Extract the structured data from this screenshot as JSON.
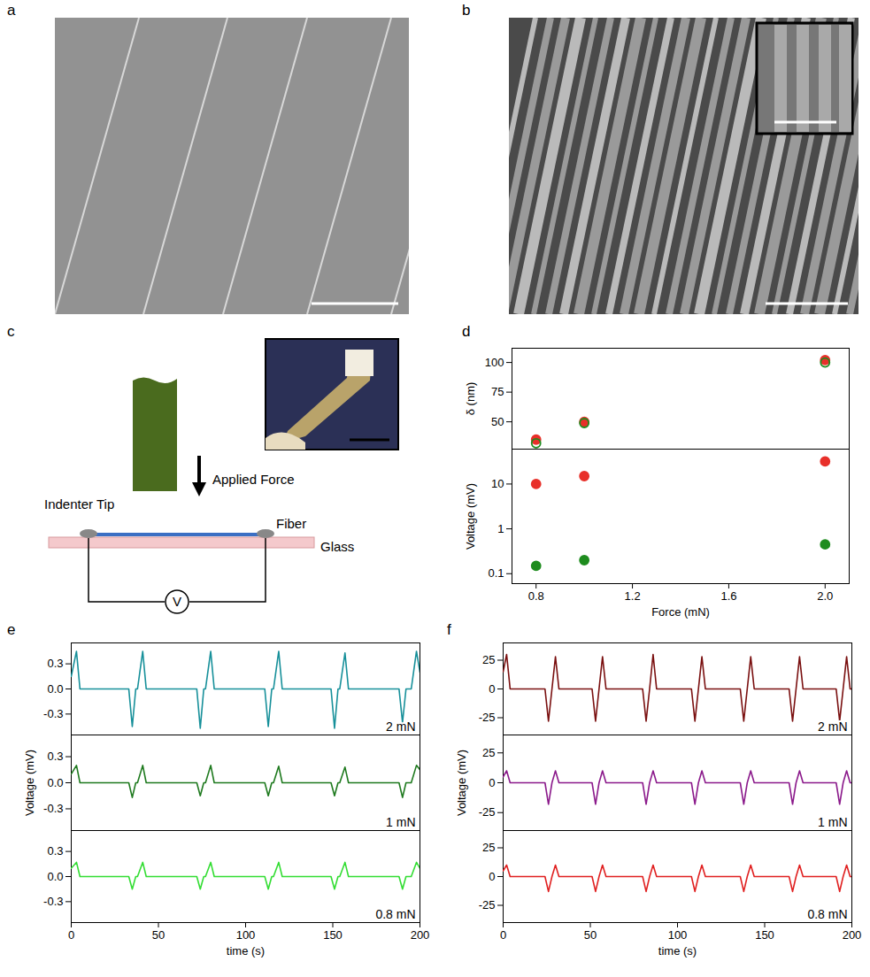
{
  "images": [
    {
      "letter": "a"
    },
    {
      "letter": "b"
    }
  ],
  "diagram": {
    "letter": "c",
    "labels": {
      "tip": "Indenter Tip",
      "force": "Applied Force",
      "fiber": "Fiber",
      "glass": "Glass",
      "meter": "V"
    }
  },
  "chart_data": [
    {
      "panel": "d",
      "type": "scatter",
      "tick_labels": "y",
      "xlim": [
        0.7,
        2.1
      ],
      "xticks": [
        0.8,
        1.2,
        1.6,
        {
          "value": 2,
          "label": "2.0"
        }
      ],
      "ylim": [
        27,
        112
      ],
      "yticks": [
        50,
        75,
        100
      ],
      "ylabel": "δ (nm)",
      "x": [
        0.8,
        1,
        2
      ],
      "series": [
        {
          "color": "#e8302a",
          "marker": "filled circle",
          "values": [
            35,
            50,
            102
          ]
        },
        {
          "color": "#1e8c1e",
          "marker": "open circle",
          "values": [
            32,
            49,
            100
          ]
        }
      ]
    },
    {
      "panel": "d",
      "type": "scatter",
      "log": "y",
      "xlim": [
        0.7,
        2.1
      ],
      "xticks": [
        0.8,
        1.2,
        1.6,
        {
          "value": 2,
          "label": "2.0"
        }
      ],
      "xlabel": "Force (mN)",
      "ylim": [
        0.06,
        60
      ],
      "yticks": [
        0.1,
        1,
        10
      ],
      "ylabel": "Voltage (mV)",
      "x": [
        0.8,
        1,
        2
      ],
      "series": [
        {
          "color": "#e8302a",
          "marker": "filled circle",
          "values": [
            10,
            15,
            32
          ]
        },
        {
          "color": "#1e8c1e",
          "marker": "filled circle",
          "values": [
            0.15,
            0.2,
            0.45
          ]
        }
      ]
    },
    {
      "panel": "e",
      "type": "line",
      "tick_labels": "y",
      "annotation": "2 mN",
      "xlim": [
        0,
        200
      ],
      "xticks": [
        0,
        50,
        100,
        150,
        200
      ],
      "ylim": [
        -0.55,
        0.55
      ],
      "yticks": [
        -0.3,
        {
          "value": 0,
          "label": "0.0"
        },
        0.3
      ],
      "x": [
        0,
        3,
        5,
        33,
        35,
        37,
        38,
        41,
        43,
        72,
        74,
        76,
        77,
        80,
        82,
        111,
        113,
        115,
        116,
        119,
        121,
        149,
        151,
        153,
        154,
        157,
        159,
        188,
        190,
        192,
        195,
        198,
        200
      ],
      "series": [
        {
          "color": "#17909a",
          "values": [
            0.15,
            0.45,
            0,
            0,
            -0.45,
            0,
            0,
            0.45,
            0,
            0,
            -0.47,
            0,
            0,
            0.45,
            0,
            0,
            -0.45,
            0,
            0,
            0.45,
            0,
            0,
            -0.47,
            0,
            0,
            0.43,
            0,
            0,
            -0.4,
            0,
            0,
            0.45,
            0.2
          ]
        }
      ]
    },
    {
      "panel": "e",
      "type": "line",
      "tick_labels": "y",
      "annotation": "1 mN",
      "ylabel": "Voltage (mV)",
      "xlim": [
        0,
        200
      ],
      "xticks": [
        0,
        50,
        100,
        150,
        200
      ],
      "ylim": [
        -0.55,
        0.55
      ],
      "yticks": [
        -0.3,
        {
          "value": 0,
          "label": "0.0"
        },
        0.3
      ],
      "x": [
        0,
        3,
        5,
        33,
        35,
        37,
        38,
        41,
        43,
        72,
        74,
        76,
        77,
        80,
        82,
        111,
        113,
        115,
        116,
        119,
        121,
        149,
        151,
        153,
        154,
        157,
        159,
        188,
        190,
        192,
        195,
        198,
        200
      ],
      "series": [
        {
          "color": "#1f7a1f",
          "values": [
            0.1,
            0.2,
            0,
            0,
            -0.17,
            0,
            0,
            0.2,
            0,
            0,
            -0.15,
            0,
            0,
            0.2,
            0,
            0,
            -0.15,
            0,
            0,
            0.19,
            0,
            0,
            -0.15,
            0,
            0,
            0.18,
            0,
            0,
            -0.17,
            0,
            0,
            0.2,
            0.15
          ]
        }
      ]
    },
    {
      "panel": "e",
      "type": "line",
      "annotation": "0.8 mN",
      "xlabel": "time (s)",
      "xlim": [
        0,
        200
      ],
      "xticks": [
        0,
        50,
        100,
        150,
        200
      ],
      "ylim": [
        -0.55,
        0.55
      ],
      "yticks": [
        -0.3,
        {
          "value": 0,
          "label": "0.0"
        },
        0.3
      ],
      "x": [
        0,
        3,
        5,
        33,
        35,
        37,
        38,
        41,
        43,
        72,
        74,
        76,
        77,
        80,
        82,
        111,
        113,
        115,
        116,
        119,
        121,
        149,
        151,
        153,
        154,
        157,
        159,
        188,
        190,
        192,
        195,
        198,
        200
      ],
      "series": [
        {
          "color": "#33dd33",
          "values": [
            0.1,
            0.17,
            0,
            0,
            -0.15,
            0,
            0,
            0.17,
            0,
            0,
            -0.15,
            0,
            0,
            0.17,
            0,
            0,
            -0.15,
            0,
            0,
            0.17,
            0,
            0,
            -0.15,
            0,
            0,
            0.17,
            0,
            0,
            -0.15,
            0,
            0,
            0.17,
            0.1
          ]
        }
      ]
    },
    {
      "panel": "f",
      "type": "line",
      "tick_labels": "y",
      "annotation": "2 mN",
      "xlim": [
        0,
        200
      ],
      "xticks": [
        0,
        50,
        100,
        150,
        200
      ],
      "ylim": [
        -40,
        40
      ],
      "yticks": [
        -25,
        0,
        25
      ],
      "x": [
        0,
        2,
        4,
        24,
        26,
        28,
        30,
        32,
        51,
        53,
        55,
        57,
        59,
        80,
        82,
        84,
        86,
        88,
        108,
        110,
        112,
        114,
        116,
        136,
        138,
        140,
        142,
        144,
        164,
        166,
        168,
        170,
        172,
        191,
        193,
        195,
        197,
        199,
        200
      ],
      "series": [
        {
          "color": "#7a1010",
          "values": [
            15,
            30,
            0,
            0,
            -28,
            0,
            28,
            0,
            0,
            -28,
            0,
            28,
            0,
            0,
            -28,
            0,
            30,
            0,
            0,
            -28,
            0,
            28,
            0,
            0,
            -28,
            0,
            28,
            0,
            0,
            -28,
            0,
            28,
            0,
            0,
            -28,
            0,
            28,
            0,
            0
          ]
        }
      ]
    },
    {
      "panel": "f",
      "type": "line",
      "tick_labels": "y",
      "annotation": "1 mN",
      "ylabel": "Voltage (mV)",
      "xlim": [
        0,
        200
      ],
      "xticks": [
        0,
        50,
        100,
        150,
        200
      ],
      "ylim": [
        -40,
        40
      ],
      "yticks": [
        -25,
        0,
        25
      ],
      "x": [
        0,
        2,
        4,
        24,
        26,
        28,
        30,
        32,
        51,
        53,
        55,
        57,
        59,
        80,
        82,
        84,
        86,
        88,
        108,
        110,
        112,
        114,
        116,
        136,
        138,
        140,
        142,
        144,
        164,
        166,
        168,
        170,
        172,
        191,
        193,
        195,
        197,
        199,
        200
      ],
      "series": [
        {
          "color": "#8b1a8b",
          "values": [
            5,
            10,
            0,
            0,
            -18,
            0,
            10,
            0,
            0,
            -18,
            0,
            10,
            0,
            0,
            -18,
            0,
            10,
            0,
            0,
            -18,
            0,
            10,
            0,
            0,
            -18,
            0,
            10,
            0,
            0,
            -18,
            0,
            10,
            0,
            0,
            -18,
            0,
            10,
            0,
            0
          ]
        }
      ]
    },
    {
      "panel": "f",
      "type": "line",
      "annotation": "0.8 mN",
      "xlabel": "time (s)",
      "xlim": [
        0,
        200
      ],
      "xticks": [
        0,
        50,
        100,
        150,
        200
      ],
      "ylim": [
        -40,
        40
      ],
      "yticks": [
        -25,
        0,
        25
      ],
      "x": [
        0,
        2,
        4,
        24,
        26,
        28,
        30,
        32,
        51,
        53,
        55,
        57,
        59,
        80,
        82,
        84,
        86,
        88,
        108,
        110,
        112,
        114,
        116,
        136,
        138,
        140,
        142,
        144,
        164,
        166,
        168,
        170,
        172,
        191,
        193,
        195,
        197,
        199,
        200
      ],
      "series": [
        {
          "color": "#e02020",
          "values": [
            5,
            10,
            0,
            0,
            -13,
            0,
            10,
            0,
            0,
            -13,
            0,
            10,
            0,
            0,
            -13,
            0,
            10,
            0,
            0,
            -13,
            0,
            10,
            0,
            0,
            -13,
            0,
            10,
            0,
            0,
            -13,
            0,
            10,
            0,
            0,
            -13,
            0,
            10,
            0,
            0
          ]
        }
      ]
    }
  ]
}
